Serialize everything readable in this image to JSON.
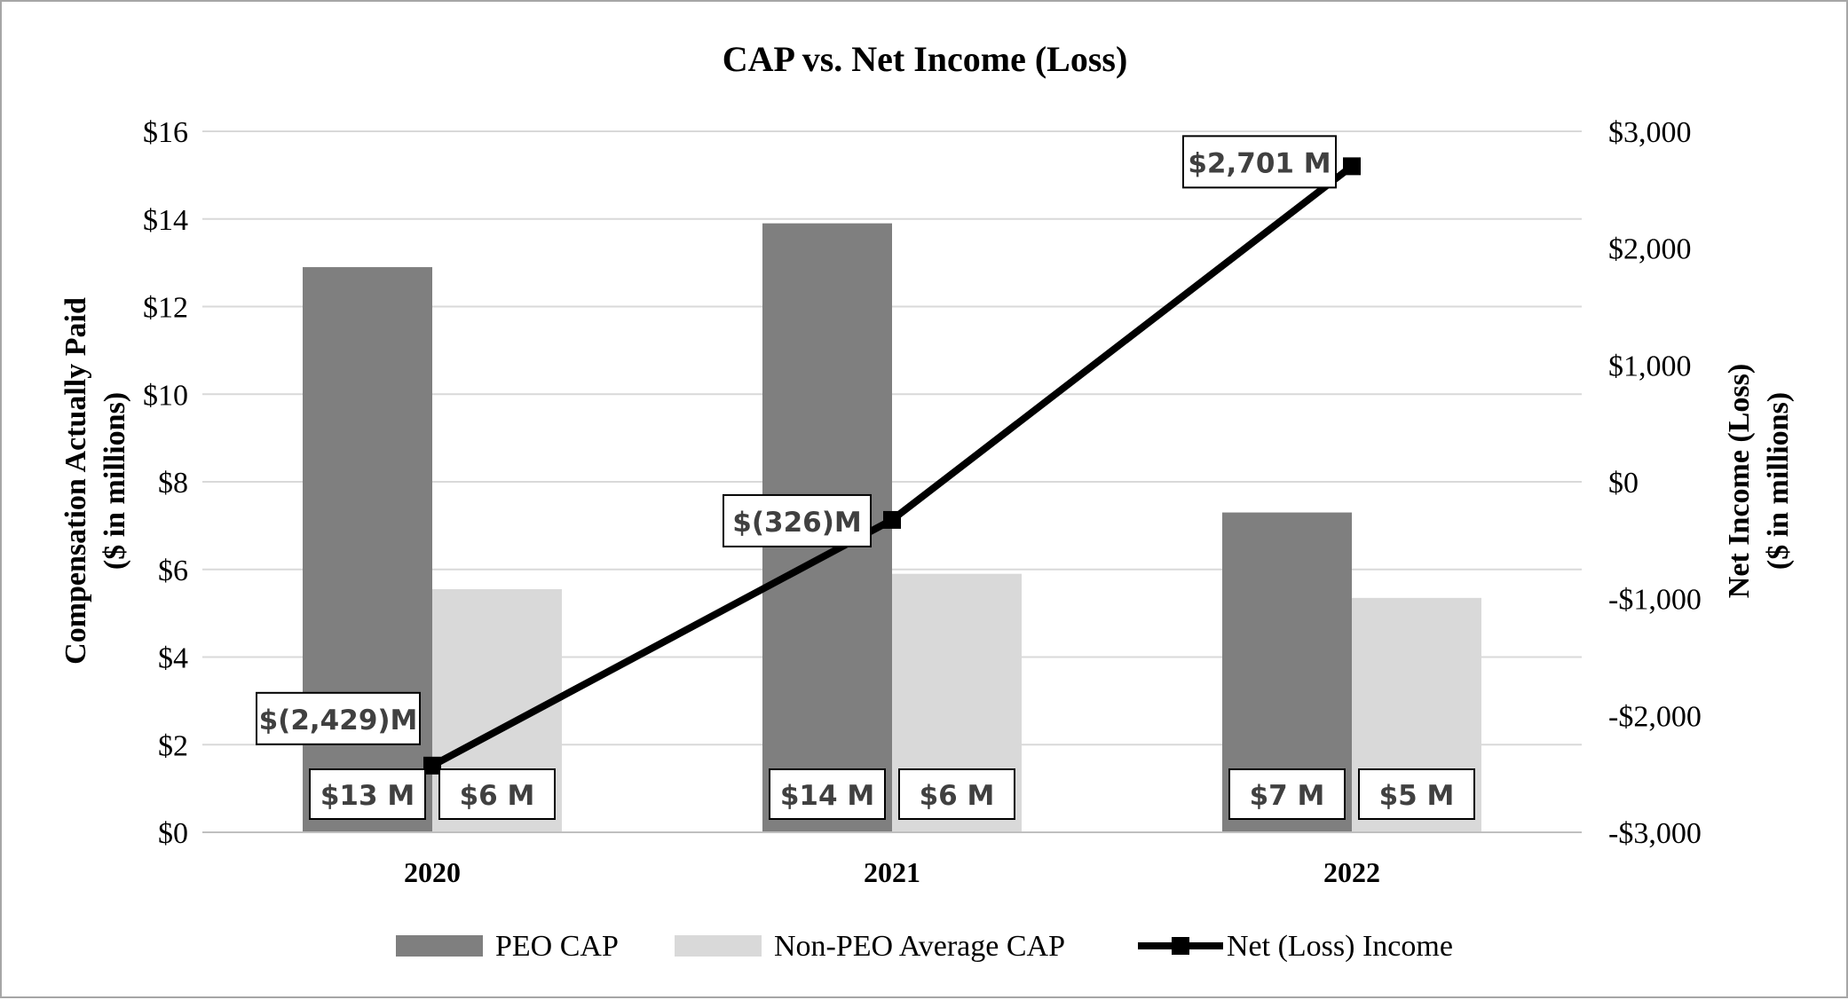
{
  "chart_data": {
    "type": "bar",
    "title": "CAP vs. Net Income (Loss)",
    "categories": [
      "2020",
      "2021",
      "2022"
    ],
    "y_left": {
      "label_line1": "Compensation Actually Paid",
      "label_line2": "($ in millions)",
      "ylim": [
        0,
        16
      ],
      "ticks": [
        0,
        2,
        4,
        6,
        8,
        10,
        12,
        14,
        16
      ],
      "tick_labels": [
        "$0",
        "$2",
        "$4",
        "$6",
        "$8",
        "$10",
        "$12",
        "$14",
        "$16"
      ]
    },
    "y_right": {
      "label_line1": "Net Income (Loss)",
      "label_line2": "($ in millions)",
      "ylim": [
        -3000,
        3000
      ],
      "ticks": [
        -3000,
        -2000,
        -1000,
        0,
        1000,
        2000,
        3000
      ],
      "tick_labels": [
        "-$3,000",
        "-$2,000",
        "-$1,000",
        "$0",
        "$1,000",
        "$2,000",
        "$3,000"
      ]
    },
    "series": [
      {
        "name": "PEO CAP",
        "type": "bar",
        "axis": "left",
        "color": "#7f7f7f",
        "values": [
          12.9,
          13.9,
          7.3
        ],
        "labels": [
          "$13 M",
          "$14 M",
          "$7 M"
        ]
      },
      {
        "name": "Non-PEO Average CAP",
        "type": "bar",
        "axis": "left",
        "color": "#d9d9d9",
        "values": [
          5.55,
          5.9,
          5.35
        ],
        "labels": [
          "$6 M",
          "$6 M",
          "$5 M"
        ]
      },
      {
        "name": "Net (Loss) Income",
        "type": "line",
        "axis": "right",
        "color": "#000000",
        "values": [
          -2429,
          -326,
          2701
        ],
        "labels": [
          "$(2,429)M",
          "$(326)M",
          "$2,701 M"
        ]
      }
    ],
    "grid": true,
    "legend_position": "bottom"
  }
}
